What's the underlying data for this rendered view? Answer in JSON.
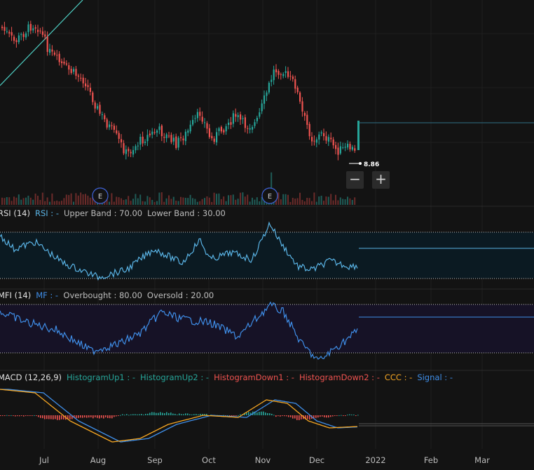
{
  "chart_data": {
    "type": "candlestick",
    "x_axis": {
      "ticks": [
        "Jul",
        "Aug",
        "Sep",
        "Oct",
        "Nov",
        "Dec",
        "2022",
        "Feb",
        "Mar"
      ]
    },
    "price": {
      "last_value_label": "8.86",
      "earnings_markers": [
        "E",
        "E"
      ],
      "colors": {
        "up": "#26a69a",
        "down": "#ef5350",
        "trendline": "#4fd1c5",
        "last_line": "#2f6f86"
      }
    },
    "rsi": {
      "title": "RSI (14)",
      "series": [
        {
          "name": "RSI : -",
          "color": "#5ab4e6"
        }
      ],
      "bands": [
        {
          "label": "Upper Band : 70.00"
        },
        {
          "label": "Lower Band : 30.00"
        }
      ]
    },
    "mfi": {
      "title": "MFI (14)",
      "series": [
        {
          "name": "MF : -",
          "color": "#3f8ee8"
        }
      ],
      "bands": [
        {
          "label": "Overbought : 80.00"
        },
        {
          "label": "Oversold : 20.00"
        }
      ]
    },
    "macd": {
      "title": "MACD (12,26,9)",
      "series": [
        {
          "name": "HistogramUp1 : -",
          "color": "#26a69a"
        },
        {
          "name": "HistogramUp2 : -",
          "color": "#26a69a"
        },
        {
          "name": "HistogramDown1 : -",
          "color": "#ef5350"
        },
        {
          "name": "HistogramDown2 : -",
          "color": "#ef5350"
        },
        {
          "name": "CCC : -",
          "color": "#f5a623"
        },
        {
          "name": "Signal : -",
          "color": "#3f8ee8"
        }
      ]
    }
  },
  "controls": {
    "zoom_out": "−",
    "zoom_in": "+"
  }
}
